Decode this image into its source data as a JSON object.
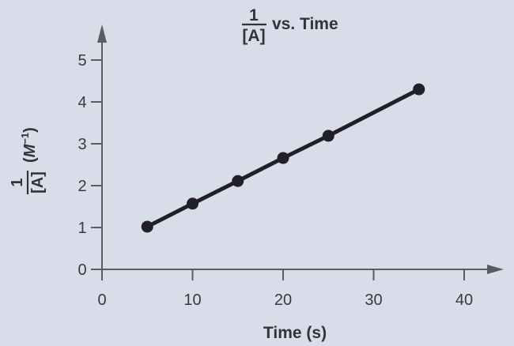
{
  "chart_data": {
    "type": "line",
    "title": "1/[A] vs. Time",
    "title_parts": {
      "numerator": "1",
      "denominator": "[A]",
      "suffix": "vs. Time"
    },
    "xlabel": "Time (s)",
    "ylabel": "1/[A] (M^-1)",
    "ylabel_parts": {
      "numerator": "1",
      "denominator": "[A]",
      "unit_open": "(",
      "unit_base": "M",
      "unit_exp": "−1",
      "unit_close": ")"
    },
    "xlim": [
      0,
      40
    ],
    "ylim": [
      0,
      5
    ],
    "x_ticks": [
      "0",
      "10",
      "20",
      "30",
      "40"
    ],
    "y_ticks": [
      "0",
      "1",
      "2",
      "3",
      "4",
      "5"
    ],
    "grid": false,
    "legend": null,
    "series": [
      {
        "name": "1/[A]",
        "x": [
          5,
          10,
          15,
          20,
          25,
          35
        ],
        "values": [
          1.02,
          1.57,
          2.11,
          2.66,
          3.19,
          4.3
        ],
        "color": "#231f28",
        "markers": true
      }
    ]
  },
  "colors": {
    "background": "#d8dde9",
    "axis": "#5c5c60",
    "line": "#231f28"
  }
}
